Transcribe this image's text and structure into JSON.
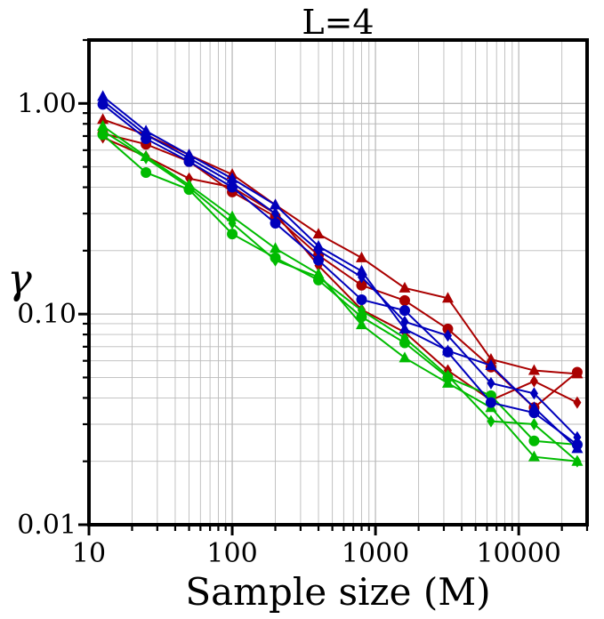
{
  "chart_data": {
    "type": "line",
    "title": "L=4",
    "xlabel": "Sample size (M)",
    "ylabel": "γ",
    "xscale": "log",
    "yscale": "log",
    "xlim": [
      10,
      30000
    ],
    "ylim": [
      0.01,
      2.0
    ],
    "xticks": [
      {
        "value": 10,
        "label": "10"
      },
      {
        "value": 100,
        "label": "100"
      },
      {
        "value": 1000,
        "label": "1000"
      },
      {
        "value": 10000,
        "label": "10000"
      }
    ],
    "yticks": [
      {
        "value": 0.01,
        "label": "0.01"
      },
      {
        "value": 0.1,
        "label": "0.10"
      },
      {
        "value": 1.0,
        "label": "1.00"
      }
    ],
    "grid": true,
    "colors": {
      "red": "#aa0000",
      "green": "#00bb00",
      "blue": "#0000bb"
    },
    "x": [
      12.5,
      25,
      50,
      100,
      200,
      400,
      800,
      1600,
      3200,
      6400,
      12800,
      25600
    ],
    "series": [
      {
        "color": "#aa0000",
        "marker": "triangle",
        "values": [
          0.84,
          0.71,
          0.57,
          0.46,
          0.33,
          0.24,
          0.185,
          0.133,
          0.119,
          0.061,
          0.054,
          0.052
        ]
      },
      {
        "color": "#aa0000",
        "marker": "circle",
        "values": [
          0.72,
          0.64,
          0.53,
          0.38,
          0.29,
          0.19,
          0.137,
          0.116,
          0.085,
          0.056,
          0.036,
          0.053
        ]
      },
      {
        "color": "#aa0000",
        "marker": "diamond",
        "values": [
          0.69,
          0.56,
          0.44,
          0.4,
          0.3,
          0.17,
          0.105,
          0.082,
          0.054,
          0.039,
          0.048,
          0.038
        ]
      },
      {
        "color": "#00bb00",
        "marker": "triangle",
        "values": [
          0.78,
          0.56,
          0.41,
          0.29,
          0.205,
          0.155,
          0.089,
          0.062,
          0.047,
          0.036,
          0.021,
          0.02
        ]
      },
      {
        "color": "#00bb00",
        "marker": "circle",
        "values": [
          0.71,
          0.47,
          0.39,
          0.24,
          0.185,
          0.145,
          0.097,
          0.073,
          0.05,
          0.041,
          0.025,
          0.024
        ]
      },
      {
        "color": "#00bb00",
        "marker": "diamond",
        "values": [
          0.74,
          0.55,
          0.4,
          0.27,
          0.18,
          0.15,
          0.104,
          0.077,
          0.051,
          0.031,
          0.03,
          0.02
        ]
      },
      {
        "color": "#0000bb",
        "marker": "triangle",
        "values": [
          1.08,
          0.74,
          0.57,
          0.44,
          0.33,
          0.21,
          0.16,
          0.085,
          0.067,
          0.057,
          0.036,
          0.023
        ]
      },
      {
        "color": "#0000bb",
        "marker": "circle",
        "values": [
          0.99,
          0.68,
          0.53,
          0.4,
          0.27,
          0.18,
          0.117,
          0.104,
          0.066,
          0.038,
          0.034,
          0.024
        ]
      },
      {
        "color": "#0000bb",
        "marker": "diamond",
        "values": [
          1.03,
          0.71,
          0.55,
          0.42,
          0.3,
          0.2,
          0.15,
          0.092,
          0.079,
          0.047,
          0.042,
          0.026
        ]
      }
    ]
  }
}
